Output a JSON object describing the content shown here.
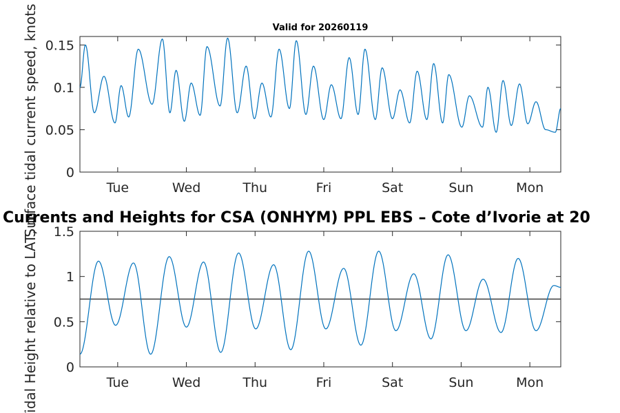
{
  "colors": {
    "series": "#0072bd",
    "reference": "#3c3c3c",
    "axis": "#262626"
  },
  "chart_data": [
    {
      "type": "line",
      "title": "Valid for 20260119",
      "ylabel": "Surface tidal current speed, knots",
      "xlabel": "",
      "xlim": [
        0,
        7
      ],
      "ylim": [
        0,
        0.16
      ],
      "yticks": [
        0,
        0.05,
        0.1,
        0.15
      ],
      "ytick_labels": [
        "0",
        "0.05",
        "0.1",
        "0.15"
      ],
      "xticks": [
        0.55,
        1.55,
        2.55,
        3.55,
        4.55,
        5.55,
        6.55
      ],
      "xtick_labels": [
        "Tue",
        "Wed",
        "Thu",
        "Fri",
        "Sat",
        "Sun",
        "Mon"
      ],
      "series": [
        {
          "name": "current speed",
          "x": [
            0.0,
            0.08,
            0.21,
            0.35,
            0.51,
            0.6,
            0.71,
            0.85,
            1.05,
            1.2,
            1.31,
            1.4,
            1.52,
            1.62,
            1.75,
            1.85,
            2.04,
            2.15,
            2.29,
            2.42,
            2.54,
            2.65,
            2.78,
            2.9,
            3.05,
            3.15,
            3.29,
            3.4,
            3.55,
            3.66,
            3.8,
            3.92,
            4.05,
            4.15,
            4.3,
            4.4,
            4.55,
            4.66,
            4.8,
            4.91,
            5.05,
            5.15,
            5.28,
            5.37,
            5.56,
            5.67,
            5.86,
            5.94,
            6.06,
            6.16,
            6.28,
            6.4,
            6.52,
            6.64,
            6.78,
            6.92,
            7.0
          ],
          "y": [
            0.1,
            0.15,
            0.07,
            0.113,
            0.058,
            0.102,
            0.065,
            0.145,
            0.08,
            0.157,
            0.07,
            0.12,
            0.06,
            0.105,
            0.067,
            0.148,
            0.078,
            0.158,
            0.07,
            0.125,
            0.063,
            0.105,
            0.065,
            0.145,
            0.075,
            0.155,
            0.068,
            0.125,
            0.062,
            0.103,
            0.063,
            0.135,
            0.068,
            0.145,
            0.062,
            0.123,
            0.063,
            0.097,
            0.058,
            0.119,
            0.062,
            0.128,
            0.058,
            0.115,
            0.053,
            0.09,
            0.053,
            0.1,
            0.047,
            0.108,
            0.055,
            0.104,
            0.057,
            0.083,
            0.05,
            0.047,
            0.075
          ]
        }
      ]
    },
    {
      "type": "line",
      "title": "Currents and Heights for CSA (ONHYM) PPL EBS  – Cote d’Ivorie at 20",
      "ylabel": "Tidal Height relative to LAT, m",
      "xlabel": "",
      "xlim": [
        0,
        7
      ],
      "ylim": [
        0,
        1.5
      ],
      "yticks": [
        0,
        0.5,
        1,
        1.5
      ],
      "ytick_labels": [
        "0",
        "0.5",
        "1",
        "1.5"
      ],
      "xticks": [
        0.55,
        1.55,
        2.55,
        3.55,
        4.55,
        5.55,
        6.55
      ],
      "xtick_labels": [
        "Tue",
        "Wed",
        "Thu",
        "Fri",
        "Sat",
        "Sun",
        "Mon"
      ],
      "reference_line": 0.75,
      "series": [
        {
          "name": "tidal height",
          "x": [
            0.0,
            0.27,
            0.52,
            0.78,
            1.03,
            1.3,
            1.55,
            1.8,
            2.05,
            2.31,
            2.56,
            2.82,
            3.07,
            3.33,
            3.58,
            3.84,
            4.09,
            4.35,
            4.6,
            4.86,
            5.11,
            5.36,
            5.62,
            5.87,
            6.13,
            6.38,
            6.64,
            6.9,
            7.0
          ],
          "y": [
            0.14,
            1.17,
            0.46,
            1.15,
            0.14,
            1.22,
            0.44,
            1.16,
            0.16,
            1.26,
            0.42,
            1.13,
            0.19,
            1.28,
            0.42,
            1.09,
            0.24,
            1.28,
            0.4,
            1.03,
            0.31,
            1.24,
            0.4,
            0.97,
            0.38,
            1.2,
            0.4,
            0.9,
            0.88
          ]
        }
      ]
    }
  ]
}
